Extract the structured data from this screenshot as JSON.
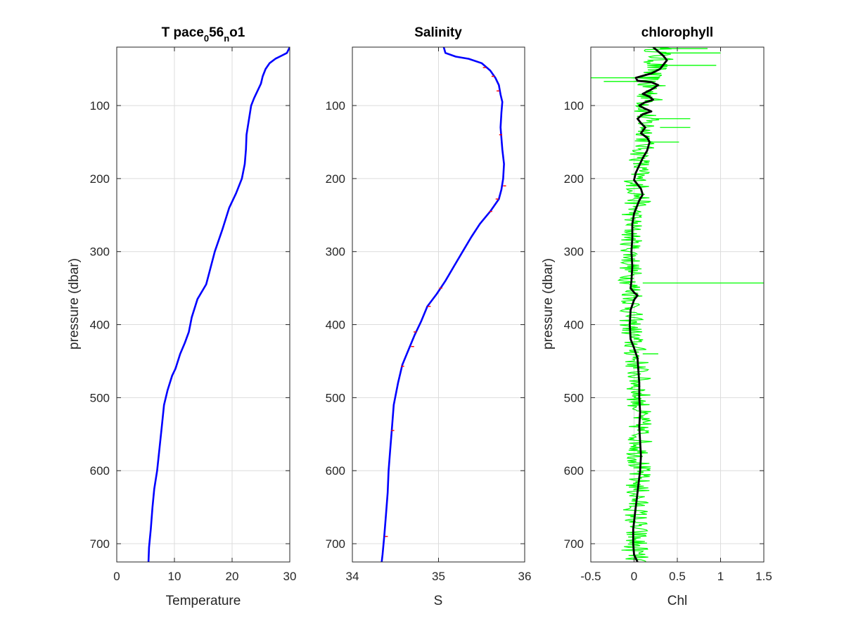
{
  "chart_data": [
    {
      "type": "line",
      "title": "T pace",
      "title_parts": [
        "T pace",
        "0",
        "56",
        "n",
        "o1"
      ],
      "xlabel": "Temperature",
      "ylabel": "pressure (dbar)",
      "xlim": [
        0,
        30
      ],
      "ylim": [
        20,
        725
      ],
      "y_reversed": true,
      "grid": true,
      "xticks": [
        "0",
        "10",
        "20",
        "30"
      ],
      "yticks": [
        "100",
        "200",
        "300",
        "400",
        "500",
        "600",
        "700"
      ],
      "series": [
        {
          "color": "#0000ff",
          "points": [
            [
              30,
              20
            ],
            [
              29.5,
              28
            ],
            [
              28.5,
              32
            ],
            [
              27.5,
              36
            ],
            [
              26.5,
              42
            ],
            [
              25.8,
              50
            ],
            [
              25.3,
              60
            ],
            [
              25,
              70
            ],
            [
              24.4,
              80
            ],
            [
              23.8,
              90
            ],
            [
              23.3,
              100
            ],
            [
              22.9,
              120
            ],
            [
              22.5,
              140
            ],
            [
              22.4,
              160
            ],
            [
              22.2,
              180
            ],
            [
              21.7,
              200
            ],
            [
              20.7,
              220
            ],
            [
              19.5,
              240
            ],
            [
              18.3,
              270
            ],
            [
              17,
              300
            ],
            [
              16,
              330
            ],
            [
              15.5,
              345
            ],
            [
              14,
              365
            ],
            [
              13,
              390
            ],
            [
              12.5,
              410
            ],
            [
              11.8,
              425
            ],
            [
              11,
              440
            ],
            [
              10.2,
              460
            ],
            [
              9.6,
              470
            ],
            [
              8.8,
              490
            ],
            [
              8.2,
              510
            ],
            [
              7.8,
              540
            ],
            [
              7.4,
              570
            ],
            [
              7,
              600
            ],
            [
              6.5,
              625
            ],
            [
              6.2,
              650
            ],
            [
              5.9,
              680
            ],
            [
              5.6,
              705
            ],
            [
              5.5,
              725
            ]
          ]
        }
      ]
    },
    {
      "type": "line",
      "title": "Salinity",
      "xlabel": "S",
      "ylabel": "",
      "xlim": [
        34,
        36
      ],
      "ylim": [
        20,
        725
      ],
      "y_reversed": true,
      "grid": true,
      "xticks": [
        "34",
        "35",
        "36"
      ],
      "yticks": [
        "100",
        "200",
        "300",
        "400",
        "500",
        "600",
        "700"
      ],
      "series": [
        {
          "color": "#0000ff",
          "points": [
            [
              35.06,
              20
            ],
            [
              35.08,
              28
            ],
            [
              35.2,
              33
            ],
            [
              35.35,
              36
            ],
            [
              35.5,
              42
            ],
            [
              35.6,
              52
            ],
            [
              35.66,
              62
            ],
            [
              35.7,
              72
            ],
            [
              35.72,
              85
            ],
            [
              35.74,
              95
            ],
            [
              35.73,
              110
            ],
            [
              35.72,
              130
            ],
            [
              35.74,
              160
            ],
            [
              35.76,
              180
            ],
            [
              35.75,
              200
            ],
            [
              35.73,
              215
            ],
            [
              35.7,
              228
            ],
            [
              35.6,
              245
            ],
            [
              35.48,
              262
            ],
            [
              35.38,
              280
            ],
            [
              35.28,
              300
            ],
            [
              35.18,
              320
            ],
            [
              35.08,
              340
            ],
            [
              34.98,
              358
            ],
            [
              34.87,
              375
            ],
            [
              34.8,
              395
            ],
            [
              34.72,
              415
            ],
            [
              34.65,
              435
            ],
            [
              34.58,
              455
            ],
            [
              34.53,
              480
            ],
            [
              34.48,
              510
            ],
            [
              34.46,
              540
            ],
            [
              34.44,
              570
            ],
            [
              34.42,
              600
            ],
            [
              34.41,
              630
            ],
            [
              34.39,
              660
            ],
            [
              34.37,
              690
            ],
            [
              34.35,
              715
            ],
            [
              34.34,
              725
            ]
          ]
        },
        {
          "color": "#ff0000",
          "points": []
        }
      ]
    },
    {
      "type": "line",
      "title": "chlorophyll",
      "xlabel": "Chl",
      "ylabel": "pressure (dbar)",
      "xlim": [
        -0.5,
        1.5
      ],
      "ylim": [
        20,
        725
      ],
      "y_reversed": true,
      "grid": true,
      "xticks": [
        "-0.5",
        "0",
        "0.5",
        "1",
        "1.5"
      ],
      "yticks": [
        "100",
        "200",
        "300",
        "400",
        "500",
        "600",
        "700"
      ],
      "series": [
        {
          "color": "#00ff00",
          "band": [
            [
              0.12,
              0.45,
              20
            ],
            [
              0.1,
              0.46,
              40
            ],
            [
              0.05,
              0.35,
              55
            ],
            [
              -0.05,
              0.3,
              62
            ],
            [
              -0.02,
              0.38,
              75
            ],
            [
              0.02,
              0.36,
              90
            ],
            [
              -0.02,
              0.28,
              105
            ],
            [
              -0.02,
              0.3,
              125
            ],
            [
              0.02,
              0.28,
              140
            ],
            [
              -0.05,
              0.22,
              165
            ],
            [
              -0.08,
              0.2,
              185
            ],
            [
              -0.12,
              0.18,
              205
            ],
            [
              -0.1,
              0.22,
              225
            ],
            [
              -0.15,
              0.12,
              250
            ],
            [
              -0.16,
              0.1,
              280
            ],
            [
              -0.17,
              0.1,
              310
            ],
            [
              -0.18,
              0.1,
              340
            ],
            [
              -0.15,
              0.14,
              360
            ],
            [
              -0.18,
              0.1,
              390
            ],
            [
              -0.16,
              0.12,
              420
            ],
            [
              -0.12,
              0.18,
              450
            ],
            [
              -0.1,
              0.2,
              480
            ],
            [
              -0.08,
              0.2,
              520
            ],
            [
              -0.08,
              0.22,
              560
            ],
            [
              -0.1,
              0.2,
              600
            ],
            [
              -0.12,
              0.18,
              640
            ],
            [
              -0.14,
              0.17,
              680
            ],
            [
              -0.15,
              0.18,
              710
            ],
            [
              -0.12,
              0.16,
              725
            ]
          ],
          "spikes": [
            [
              -0.5,
              0.3,
              62
            ],
            [
              -0.35,
              0.25,
              67
            ],
            [
              0.3,
              0.95,
              45
            ],
            [
              0.35,
              1,
              28
            ],
            [
              0.3,
              0.85,
              22
            ],
            [
              0.2,
              0.65,
              118
            ],
            [
              0.3,
              0.65,
              130
            ],
            [
              0.2,
              0.52,
              150
            ],
            [
              0.1,
              1.5,
              343
            ],
            [
              0.1,
              0.28,
              440
            ]
          ]
        },
        {
          "color": "#000000",
          "points": [
            [
              0.22,
              20
            ],
            [
              0.28,
              26
            ],
            [
              0.34,
              32
            ],
            [
              0.38,
              38
            ],
            [
              0.34,
              44
            ],
            [
              0.3,
              50
            ],
            [
              0.2,
              56
            ],
            [
              0.02,
              62
            ],
            [
              0.04,
              66
            ],
            [
              0.2,
              68
            ],
            [
              0.28,
              72
            ],
            [
              0.2,
              78
            ],
            [
              0.1,
              84
            ],
            [
              0.18,
              88
            ],
            [
              0.22,
              92
            ],
            [
              0.12,
              96
            ],
            [
              0.06,
              100
            ],
            [
              0.12,
              104
            ],
            [
              0.2,
              108
            ],
            [
              0.1,
              112
            ],
            [
              0.04,
              118
            ],
            [
              0.08,
              124
            ],
            [
              0.13,
              130
            ],
            [
              0.08,
              138
            ],
            [
              0.15,
              144
            ],
            [
              0.18,
              150
            ],
            [
              0.15,
              162
            ],
            [
              0.1,
              172
            ],
            [
              0.06,
              182
            ],
            [
              0.02,
              192
            ],
            [
              0,
              202
            ],
            [
              0.04,
              208
            ],
            [
              0.08,
              214
            ],
            [
              0.1,
              222
            ],
            [
              0.06,
              230
            ],
            [
              0.04,
              236
            ],
            [
              0,
              248
            ],
            [
              -0.02,
              262
            ],
            [
              -0.02,
              282
            ],
            [
              -0.03,
              300
            ],
            [
              -0.02,
              320
            ],
            [
              -0.03,
              340
            ],
            [
              -0.04,
              350
            ],
            [
              0,
              356
            ],
            [
              0.04,
              360
            ],
            [
              0,
              366
            ],
            [
              -0.04,
              380
            ],
            [
              -0.05,
              400
            ],
            [
              -0.04,
              420
            ],
            [
              0,
              432
            ],
            [
              0.04,
              446
            ],
            [
              0.05,
              462
            ],
            [
              0.06,
              480
            ],
            [
              0.06,
              500
            ],
            [
              0.07,
              520
            ],
            [
              0.06,
              540
            ],
            [
              0.07,
              560
            ],
            [
              0.08,
              580
            ],
            [
              0.07,
              600
            ],
            [
              0.05,
              620
            ],
            [
              0.03,
              640
            ],
            [
              0.01,
              660
            ],
            [
              -0.01,
              680
            ],
            [
              -0.01,
              700
            ],
            [
              0,
              715
            ],
            [
              0.04,
              725
            ]
          ]
        }
      ]
    }
  ]
}
